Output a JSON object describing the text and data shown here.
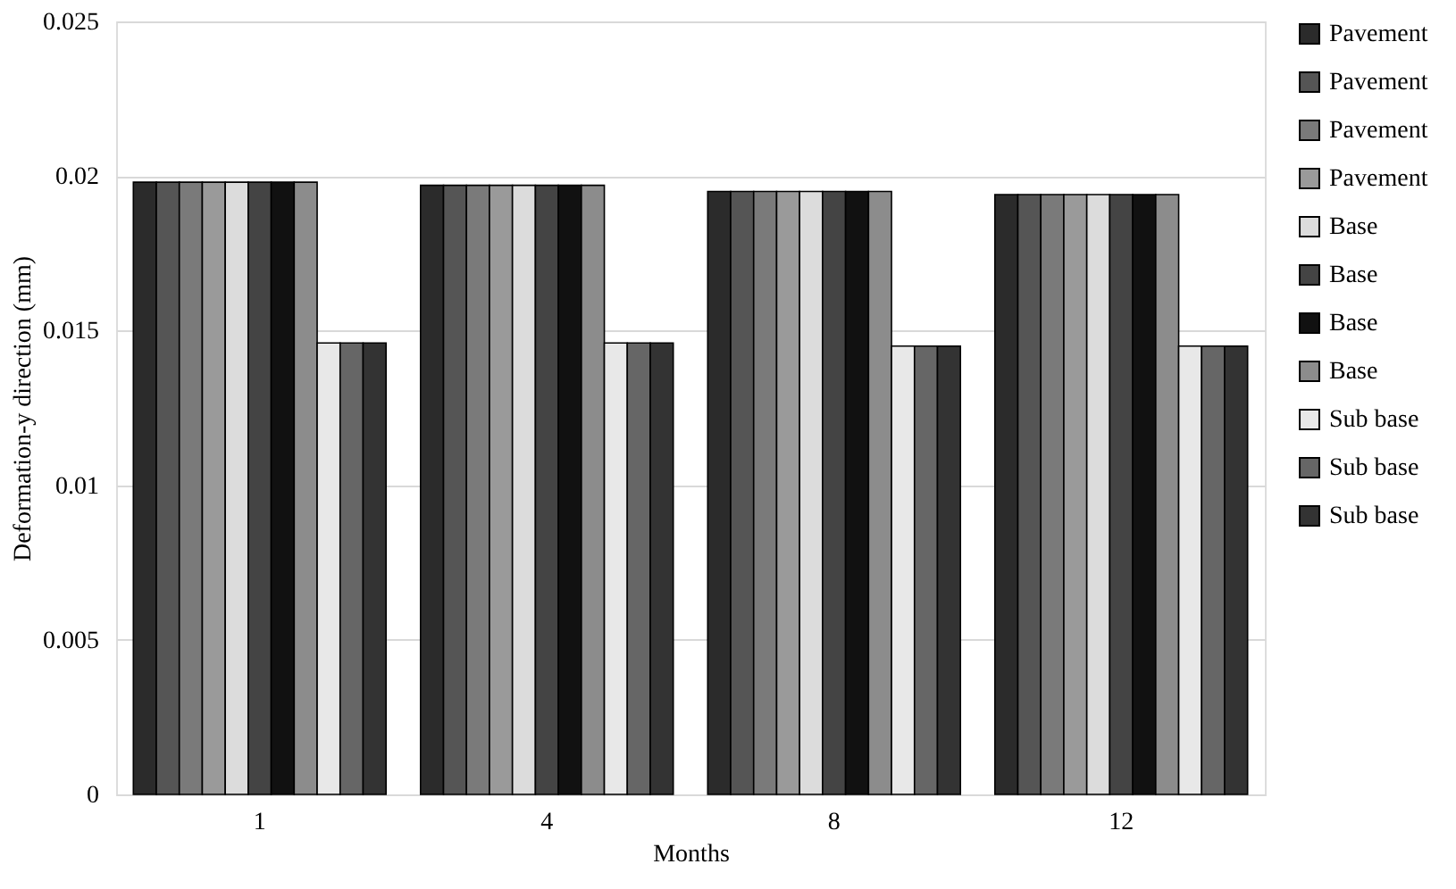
{
  "chart_data": {
    "type": "bar",
    "xlabel": "Months",
    "ylabel": "Deformation-y direction (mm)",
    "categories": [
      "1",
      "4",
      "8",
      "12"
    ],
    "series": [
      {
        "name": "Pavement",
        "color": "#2b2b2b",
        "values": [
          0.0198,
          0.0197,
          0.0195,
          0.0194
        ]
      },
      {
        "name": "Pavement",
        "color": "#555555",
        "values": [
          0.0198,
          0.0197,
          0.0195,
          0.0194
        ]
      },
      {
        "name": "Pavement",
        "color": "#7a7a7a",
        "values": [
          0.0198,
          0.0197,
          0.0195,
          0.0194
        ]
      },
      {
        "name": "Pavement",
        "color": "#9a9a9a",
        "values": [
          0.0198,
          0.0197,
          0.0195,
          0.0194
        ]
      },
      {
        "name": "Base",
        "color": "#dcdcdc",
        "values": [
          0.0198,
          0.0197,
          0.0195,
          0.0194
        ]
      },
      {
        "name": "Base",
        "color": "#444444",
        "values": [
          0.0198,
          0.0197,
          0.0195,
          0.0194
        ]
      },
      {
        "name": "Base",
        "color": "#111111",
        "values": [
          0.0198,
          0.0197,
          0.0195,
          0.0194
        ]
      },
      {
        "name": "Base",
        "color": "#8c8c8c",
        "values": [
          0.0198,
          0.0197,
          0.0195,
          0.0194
        ]
      },
      {
        "name": "Sub base",
        "color": "#e8e8e8",
        "values": [
          0.0146,
          0.0146,
          0.0145,
          0.0145
        ]
      },
      {
        "name": "Sub base",
        "color": "#666666",
        "values": [
          0.0146,
          0.0146,
          0.0145,
          0.0145
        ]
      },
      {
        "name": "Sub base",
        "color": "#333333",
        "values": [
          0.0146,
          0.0146,
          0.0145,
          0.0145
        ]
      }
    ],
    "ylim": [
      0,
      0.025
    ],
    "yticks": [
      0,
      0.005,
      0.01,
      0.015,
      0.02,
      0.025
    ],
    "grid": "y",
    "legend": "right"
  }
}
